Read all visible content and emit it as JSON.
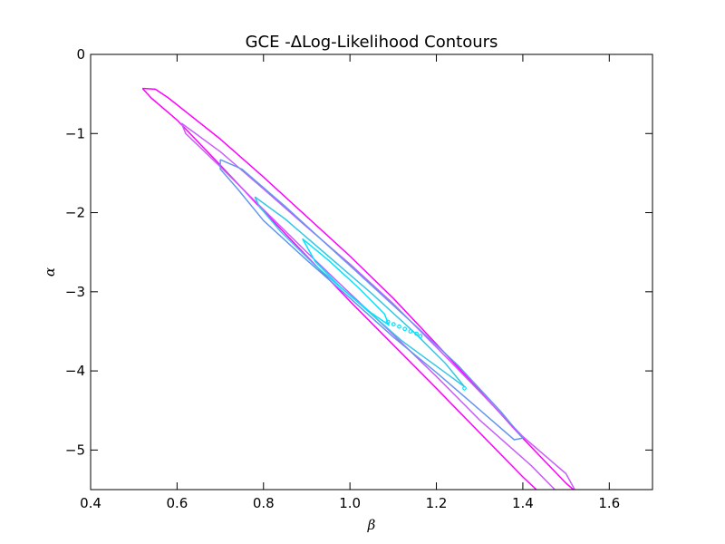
{
  "chart_data": {
    "type": "contour",
    "title": "GCE -ΔLog-Likelihood Contours",
    "xlabel": "β",
    "ylabel": "α",
    "xlim": [
      0.4,
      1.7
    ],
    "ylim": [
      -5.5,
      0
    ],
    "xticks": [
      "0.4",
      "0.6",
      "0.8",
      "1.0",
      "1.2",
      "1.4",
      "1.6"
    ],
    "yticks": [
      "0",
      "−1",
      "−2",
      "−3",
      "−4",
      "−5"
    ],
    "grid": false,
    "series": [
      {
        "color": "#ff00ff",
        "points": [
          [
            0.52,
            -0.43
          ],
          [
            0.55,
            -0.44
          ],
          [
            0.58,
            -0.55
          ],
          [
            0.7,
            -1.07
          ],
          [
            0.8,
            -1.55
          ],
          [
            0.9,
            -2.05
          ],
          [
            1.0,
            -2.55
          ],
          [
            1.1,
            -3.08
          ],
          [
            1.2,
            -3.66
          ],
          [
            1.3,
            -4.25
          ],
          [
            1.4,
            -4.85
          ],
          [
            1.5,
            -5.42
          ],
          [
            1.57,
            -5.75
          ],
          [
            1.48,
            -5.75
          ],
          [
            1.4,
            -5.34
          ],
          [
            1.3,
            -4.78
          ],
          [
            1.2,
            -4.22
          ],
          [
            1.1,
            -3.67
          ],
          [
            1.0,
            -3.12
          ],
          [
            0.9,
            -2.55
          ],
          [
            0.8,
            -1.98
          ],
          [
            0.7,
            -1.4
          ],
          [
            0.6,
            -0.83
          ],
          [
            0.54,
            -0.55
          ],
          [
            0.52,
            -0.43
          ]
        ]
      },
      {
        "color": "#c85df8",
        "points": [
          [
            0.61,
            -0.87
          ],
          [
            0.7,
            -1.23
          ],
          [
            0.8,
            -1.7
          ],
          [
            0.9,
            -2.18
          ],
          [
            1.0,
            -2.65
          ],
          [
            1.1,
            -3.15
          ],
          [
            1.2,
            -3.7
          ],
          [
            1.3,
            -4.26
          ],
          [
            1.4,
            -4.83
          ],
          [
            1.5,
            -5.3
          ],
          [
            1.54,
            -5.7
          ],
          [
            1.51,
            -5.7
          ],
          [
            1.42,
            -5.2
          ],
          [
            1.3,
            -4.62
          ],
          [
            1.2,
            -4.07
          ],
          [
            1.1,
            -3.54
          ],
          [
            1.0,
            -3.02
          ],
          [
            0.9,
            -2.5
          ],
          [
            0.8,
            -1.96
          ],
          [
            0.7,
            -1.42
          ],
          [
            0.62,
            -1.0
          ],
          [
            0.61,
            -0.87
          ]
        ]
      },
      {
        "color": "#6496f0",
        "points": [
          [
            0.7,
            -1.33
          ],
          [
            0.75,
            -1.45
          ],
          [
            0.85,
            -1.92
          ],
          [
            0.95,
            -2.42
          ],
          [
            1.05,
            -2.92
          ],
          [
            1.15,
            -3.42
          ],
          [
            1.25,
            -3.93
          ],
          [
            1.35,
            -4.52
          ],
          [
            1.4,
            -4.85
          ],
          [
            1.38,
            -4.87
          ],
          [
            1.3,
            -4.49
          ],
          [
            1.2,
            -4.02
          ],
          [
            1.1,
            -3.57
          ],
          [
            1.0,
            -3.08
          ],
          [
            0.9,
            -2.6
          ],
          [
            0.8,
            -2.1
          ],
          [
            0.74,
            -1.7
          ],
          [
            0.7,
            -1.45
          ],
          [
            0.7,
            -1.33
          ]
        ]
      },
      {
        "color": "#32c8e6",
        "points": [
          [
            0.78,
            -1.8
          ],
          [
            0.85,
            -2.08
          ],
          [
            0.95,
            -2.55
          ],
          [
            1.05,
            -3.02
          ],
          [
            1.15,
            -3.52
          ],
          [
            1.22,
            -3.9
          ],
          [
            1.265,
            -4.2
          ],
          [
            1.22,
            -4.02
          ],
          [
            1.12,
            -3.62
          ],
          [
            1.02,
            -3.14
          ],
          [
            0.92,
            -2.67
          ],
          [
            0.84,
            -2.24
          ],
          [
            0.79,
            -1.92
          ],
          [
            0.78,
            -1.8
          ]
        ]
      },
      {
        "color": "#00e5ff",
        "points": [
          [
            0.89,
            -2.33
          ],
          [
            0.95,
            -2.6
          ],
          [
            1.02,
            -2.95
          ],
          [
            1.08,
            -3.28
          ],
          [
            1.09,
            -3.42
          ],
          [
            1.05,
            -3.27
          ],
          [
            0.98,
            -2.95
          ],
          [
            0.92,
            -2.62
          ],
          [
            0.89,
            -2.33
          ]
        ]
      }
    ],
    "markers": {
      "color": "#00e5ff",
      "points": [
        [
          1.088,
          -3.38
        ],
        [
          1.101,
          -3.41
        ],
        [
          1.114,
          -3.44
        ],
        [
          1.127,
          -3.47
        ],
        [
          1.14,
          -3.5
        ],
        [
          1.154,
          -3.53
        ],
        [
          1.163,
          -3.56
        ],
        [
          1.265,
          -4.22
        ]
      ]
    }
  }
}
